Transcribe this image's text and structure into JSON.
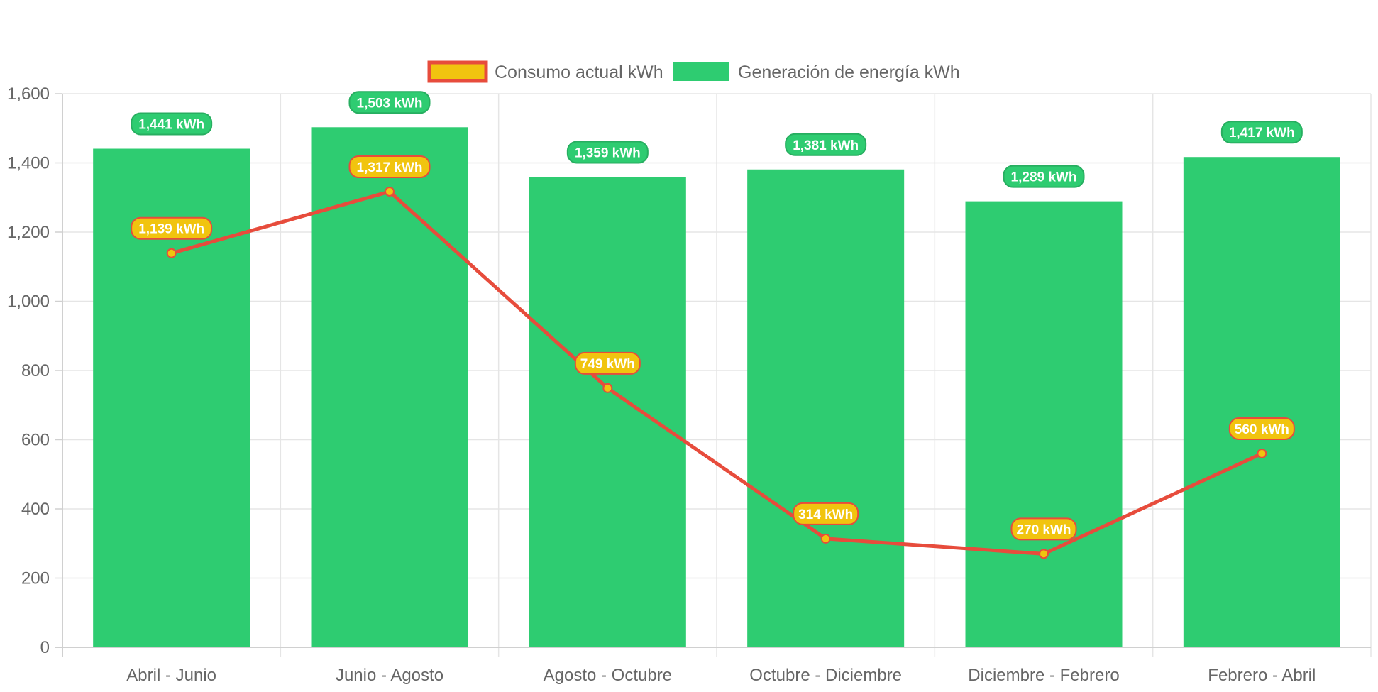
{
  "chart_data": {
    "type": "bar",
    "categories": [
      "Abril - Junio",
      "Junio - Agosto",
      "Agosto - Octubre",
      "Octubre - Diciembre",
      "Diciembre - Febrero",
      "Febrero - Abril"
    ],
    "series": [
      {
        "name": "Consumo actual kWh",
        "type": "line",
        "values": [
          1139,
          1317,
          749,
          314,
          270,
          560
        ],
        "data_labels": [
          "1,139 kWh",
          "1,317 kWh",
          "749 kWh",
          "314 kWh",
          "270 kWh",
          "560 kWh"
        ],
        "line_color": "#e74c3c",
        "fill_color": "#f1c40f"
      },
      {
        "name": "Generación de energía kWh",
        "type": "bar",
        "values": [
          1441,
          1503,
          1359,
          1381,
          1289,
          1417
        ],
        "data_labels": [
          "1,441 kWh",
          "1,503 kWh",
          "1,359 kWh",
          "1,381 kWh",
          "1,289 kWh",
          "1,417 kWh"
        ],
        "fill_color": "#2ecc71",
        "label_border_color": "#27ae60"
      }
    ],
    "ylim": [
      0,
      1600
    ],
    "yticks": [
      0,
      200,
      400,
      600,
      800,
      1000,
      1200,
      1400,
      1600
    ],
    "ytick_labels": [
      "0",
      "200",
      "400",
      "600",
      "800",
      "1,000",
      "1,200",
      "1,400",
      "1,600"
    ],
    "grid": true,
    "legend_position": "top-center",
    "title": "",
    "xlabel": "",
    "ylabel": ""
  }
}
